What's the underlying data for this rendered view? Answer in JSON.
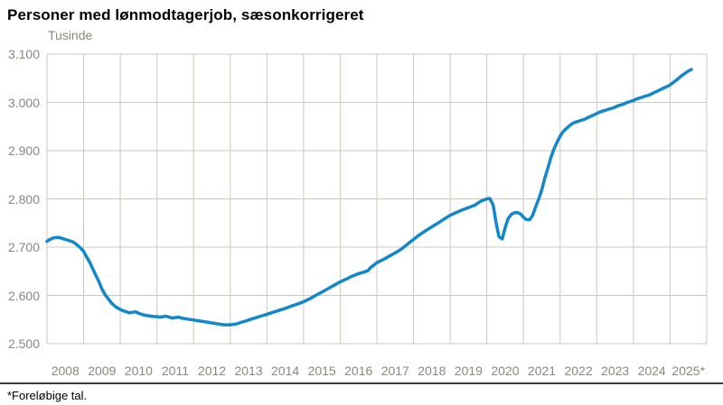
{
  "chart": {
    "title": "Personer med lønmodtagerjob, sæsonkorrigeret",
    "unit_label": "Tusinde",
    "footnote": "*Foreløbige tal."
  },
  "chart_data": {
    "type": "line",
    "title": "Personer med lønmodtagerjob, sæsonkorrigeret",
    "ylabel": "Tusinde",
    "xlabel": "",
    "footnote": "*Foreløbige tal.",
    "grid": true,
    "legend_position": "none",
    "colors": {
      "line": "#1287c9",
      "grid": "#ccc9bd",
      "tick_label": "#8a887b",
      "title": "#000000"
    },
    "ylim": [
      2500,
      3100
    ],
    "xlim": [
      2008,
      2026
    ],
    "y_ticks": [
      "3.100",
      "3.000",
      "2.900",
      "2.800",
      "2.700",
      "2.600",
      "2.500"
    ],
    "y_tick_values": [
      3100,
      3000,
      2900,
      2800,
      2700,
      2600,
      2500
    ],
    "x_ticks": [
      "2008",
      "2009",
      "2010",
      "2011",
      "2012",
      "2013",
      "2014",
      "2015",
      "2016",
      "2017",
      "2018",
      "2019",
      "2020",
      "2021",
      "2022",
      "2023",
      "2024",
      "2025*"
    ],
    "series": [
      {
        "name": "Personer med lønmodtagerjob, sæsonkorrigeret (tusinde)",
        "points": [
          [
            2008.0,
            2712
          ],
          [
            2008.08,
            2716
          ],
          [
            2008.17,
            2719
          ],
          [
            2008.25,
            2720
          ],
          [
            2008.33,
            2720
          ],
          [
            2008.42,
            2718
          ],
          [
            2008.5,
            2716
          ],
          [
            2008.58,
            2714
          ],
          [
            2008.67,
            2712
          ],
          [
            2008.75,
            2709
          ],
          [
            2008.83,
            2704
          ],
          [
            2008.92,
            2698
          ],
          [
            2009.0,
            2691
          ],
          [
            2009.08,
            2680
          ],
          [
            2009.17,
            2668
          ],
          [
            2009.25,
            2655
          ],
          [
            2009.33,
            2642
          ],
          [
            2009.42,
            2628
          ],
          [
            2009.5,
            2613
          ],
          [
            2009.58,
            2602
          ],
          [
            2009.67,
            2593
          ],
          [
            2009.75,
            2585
          ],
          [
            2009.83,
            2579
          ],
          [
            2009.92,
            2574
          ],
          [
            2010.0,
            2571
          ],
          [
            2010.08,
            2568
          ],
          [
            2010.17,
            2566
          ],
          [
            2010.25,
            2564
          ],
          [
            2010.33,
            2565
          ],
          [
            2010.42,
            2566
          ],
          [
            2010.5,
            2563
          ],
          [
            2010.58,
            2561
          ],
          [
            2010.67,
            2559
          ],
          [
            2010.75,
            2558
          ],
          [
            2010.83,
            2557
          ],
          [
            2010.92,
            2556
          ],
          [
            2011.0,
            2556
          ],
          [
            2011.08,
            2555
          ],
          [
            2011.17,
            2556
          ],
          [
            2011.25,
            2557
          ],
          [
            2011.33,
            2555
          ],
          [
            2011.42,
            2553
          ],
          [
            2011.5,
            2554
          ],
          [
            2011.58,
            2555
          ],
          [
            2011.67,
            2553
          ],
          [
            2011.75,
            2552
          ],
          [
            2011.83,
            2551
          ],
          [
            2011.92,
            2550
          ],
          [
            2012.0,
            2549
          ],
          [
            2012.08,
            2548
          ],
          [
            2012.17,
            2547
          ],
          [
            2012.25,
            2546
          ],
          [
            2012.33,
            2545
          ],
          [
            2012.42,
            2544
          ],
          [
            2012.5,
            2543
          ],
          [
            2012.58,
            2542
          ],
          [
            2012.67,
            2541
          ],
          [
            2012.75,
            2540
          ],
          [
            2012.83,
            2539
          ],
          [
            2012.92,
            2539
          ],
          [
            2013.0,
            2539
          ],
          [
            2013.08,
            2540
          ],
          [
            2013.17,
            2541
          ],
          [
            2013.25,
            2543
          ],
          [
            2013.33,
            2545
          ],
          [
            2013.42,
            2547
          ],
          [
            2013.5,
            2549
          ],
          [
            2013.58,
            2551
          ],
          [
            2013.67,
            2553
          ],
          [
            2013.75,
            2555
          ],
          [
            2013.83,
            2557
          ],
          [
            2013.92,
            2559
          ],
          [
            2014.0,
            2561
          ],
          [
            2014.17,
            2565
          ],
          [
            2014.33,
            2569
          ],
          [
            2014.5,
            2573
          ],
          [
            2014.67,
            2578
          ],
          [
            2014.83,
            2582
          ],
          [
            2015.0,
            2587
          ],
          [
            2015.17,
            2593
          ],
          [
            2015.33,
            2600
          ],
          [
            2015.5,
            2607
          ],
          [
            2015.67,
            2614
          ],
          [
            2015.83,
            2621
          ],
          [
            2016.0,
            2628
          ],
          [
            2016.17,
            2634
          ],
          [
            2016.33,
            2640
          ],
          [
            2016.5,
            2645
          ],
          [
            2016.67,
            2649
          ],
          [
            2016.75,
            2651
          ],
          [
            2016.83,
            2658
          ],
          [
            2016.92,
            2663
          ],
          [
            2017.0,
            2668
          ],
          [
            2017.17,
            2674
          ],
          [
            2017.33,
            2681
          ],
          [
            2017.5,
            2688
          ],
          [
            2017.67,
            2696
          ],
          [
            2017.83,
            2706
          ],
          [
            2018.0,
            2716
          ],
          [
            2018.17,
            2726
          ],
          [
            2018.33,
            2734
          ],
          [
            2018.5,
            2742
          ],
          [
            2018.67,
            2750
          ],
          [
            2018.83,
            2758
          ],
          [
            2019.0,
            2766
          ],
          [
            2019.17,
            2772
          ],
          [
            2019.33,
            2777
          ],
          [
            2019.5,
            2782
          ],
          [
            2019.67,
            2787
          ],
          [
            2019.75,
            2791
          ],
          [
            2019.83,
            2795
          ],
          [
            2019.92,
            2798
          ],
          [
            2020.0,
            2800
          ],
          [
            2020.08,
            2801
          ],
          [
            2020.17,
            2788
          ],
          [
            2020.25,
            2752
          ],
          [
            2020.33,
            2722
          ],
          [
            2020.42,
            2717
          ],
          [
            2020.5,
            2740
          ],
          [
            2020.58,
            2759
          ],
          [
            2020.67,
            2768
          ],
          [
            2020.75,
            2771
          ],
          [
            2020.83,
            2772
          ],
          [
            2020.92,
            2769
          ],
          [
            2021.0,
            2762
          ],
          [
            2021.08,
            2757
          ],
          [
            2021.17,
            2757
          ],
          [
            2021.25,
            2766
          ],
          [
            2021.33,
            2783
          ],
          [
            2021.42,
            2801
          ],
          [
            2021.5,
            2819
          ],
          [
            2021.58,
            2842
          ],
          [
            2021.67,
            2865
          ],
          [
            2021.75,
            2886
          ],
          [
            2021.83,
            2903
          ],
          [
            2021.92,
            2918
          ],
          [
            2022.0,
            2930
          ],
          [
            2022.08,
            2939
          ],
          [
            2022.17,
            2946
          ],
          [
            2022.25,
            2951
          ],
          [
            2022.33,
            2956
          ],
          [
            2022.42,
            2959
          ],
          [
            2022.5,
            2961
          ],
          [
            2022.58,
            2963
          ],
          [
            2022.67,
            2965
          ],
          [
            2022.75,
            2968
          ],
          [
            2022.83,
            2971
          ],
          [
            2022.92,
            2974
          ],
          [
            2023.0,
            2977
          ],
          [
            2023.08,
            2980
          ],
          [
            2023.17,
            2982
          ],
          [
            2023.25,
            2984
          ],
          [
            2023.33,
            2986
          ],
          [
            2023.42,
            2988
          ],
          [
            2023.5,
            2990
          ],
          [
            2023.58,
            2993
          ],
          [
            2023.67,
            2995
          ],
          [
            2023.75,
            2997
          ],
          [
            2023.83,
            3000
          ],
          [
            2023.92,
            3002
          ],
          [
            2024.0,
            3004
          ],
          [
            2024.08,
            3007
          ],
          [
            2024.17,
            3009
          ],
          [
            2024.25,
            3011
          ],
          [
            2024.33,
            3013
          ],
          [
            2024.42,
            3015
          ],
          [
            2024.5,
            3018
          ],
          [
            2024.58,
            3021
          ],
          [
            2024.67,
            3024
          ],
          [
            2024.75,
            3027
          ],
          [
            2024.83,
            3030
          ],
          [
            2024.92,
            3033
          ],
          [
            2025.0,
            3036
          ],
          [
            2025.08,
            3041
          ],
          [
            2025.17,
            3046
          ],
          [
            2025.25,
            3051
          ],
          [
            2025.33,
            3056
          ],
          [
            2025.42,
            3061
          ],
          [
            2025.5,
            3065
          ],
          [
            2025.58,
            3068
          ]
        ]
      }
    ]
  }
}
